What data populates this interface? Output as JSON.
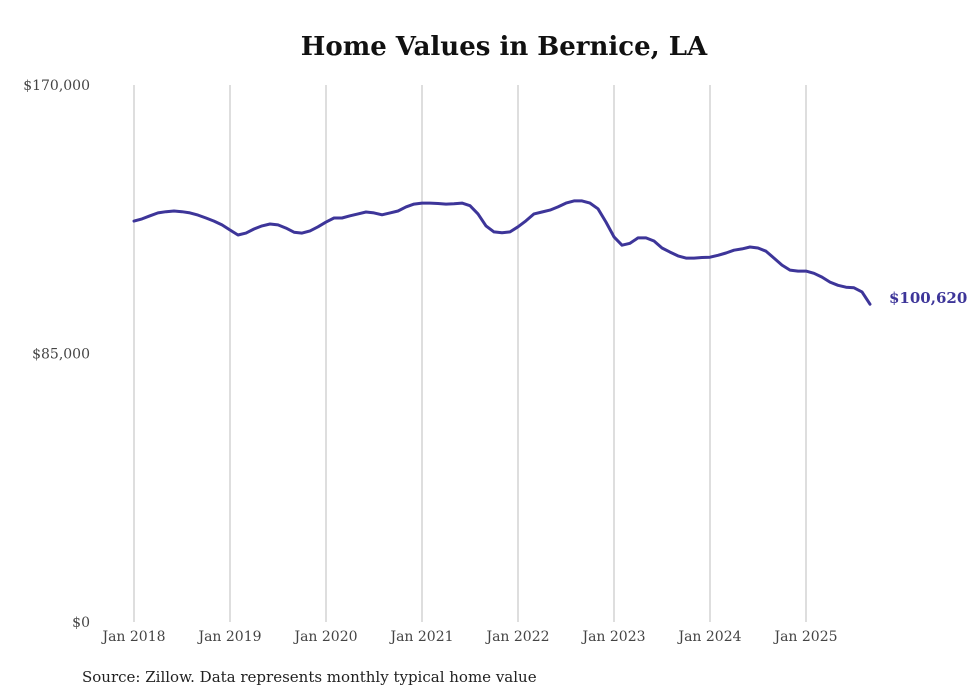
{
  "chart_data": {
    "type": "line",
    "title": "Home Values in Bernice, LA",
    "source": "Source: Zillow. Data represents monthly typical home value",
    "xlabel": "",
    "ylabel": "",
    "ylim": [
      0,
      170000
    ],
    "yticks": [
      {
        "value": 0,
        "label": "$0"
      },
      {
        "value": 85000,
        "label": "$85,000"
      },
      {
        "value": 170000,
        "label": "$170,000"
      }
    ],
    "xticks": [
      {
        "month_index": 0,
        "label": "Jan 2018"
      },
      {
        "month_index": 12,
        "label": "Jan 2019"
      },
      {
        "month_index": 24,
        "label": "Jan 2020"
      },
      {
        "month_index": 36,
        "label": "Jan 2021"
      },
      {
        "month_index": 48,
        "label": "Jan 2022"
      },
      {
        "month_index": 60,
        "label": "Jan 2023"
      },
      {
        "month_index": 72,
        "label": "Jan 2024"
      },
      {
        "month_index": 84,
        "label": "Jan 2025"
      }
    ],
    "grid": "vertical",
    "start": "Jan 2018",
    "frequency": "monthly",
    "series": [
      {
        "name": "Typical home value",
        "color": "#3d3599",
        "end_label": "$100,620",
        "values": [
          126900,
          127600,
          128600,
          129500,
          129900,
          130100,
          129900,
          129500,
          128800,
          127900,
          126900,
          125700,
          124100,
          122500,
          123100,
          124400,
          125400,
          126000,
          125700,
          124700,
          123400,
          123100,
          123800,
          125100,
          126600,
          127900,
          127900,
          128600,
          129200,
          129800,
          129500,
          128900,
          129500,
          130100,
          131400,
          132300,
          132600,
          132600,
          132500,
          132300,
          132400,
          132600,
          131800,
          129200,
          125400,
          123500,
          123200,
          123500,
          125100,
          127000,
          129200,
          129800,
          130400,
          131400,
          132600,
          133300,
          133300,
          132600,
          130800,
          126600,
          121900,
          119300,
          119900,
          121600,
          121600,
          120600,
          118400,
          117100,
          115900,
          115200,
          115200,
          115400,
          115500,
          116100,
          116800,
          117700,
          118100,
          118700,
          118400,
          117400,
          115200,
          113000,
          111400,
          111100,
          111100,
          110400,
          109200,
          107600,
          106600,
          106000,
          105800,
          104500,
          100620
        ]
      }
    ]
  }
}
